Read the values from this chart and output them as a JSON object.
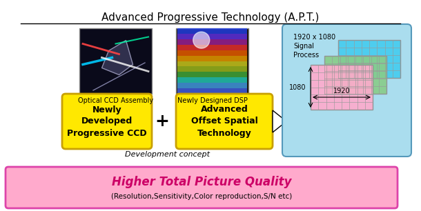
{
  "title": "Advanced Progressive Technology (A.P.T.)",
  "bg_color": "#ffffff",
  "title_fontsize": 11,
  "box1_text": "Newly\nDeveloped\nProgressive CCD",
  "box2_text": "Advanced\nOffset Spatial\nTechnology",
  "box_color": "#FFE800",
  "box_edge": "#C8A000",
  "label1": "Optical CCD Assembly",
  "label2": "Newly Designed DSP",
  "dev_label": "Development concept",
  "bottom_text": "Higher Total Picture Quality",
  "bottom_sub": "(Resolution,Sensitivity,Color reproduction,S/N etc)",
  "bottom_bg": "#FFAACC",
  "bottom_edge": "#DD44AA",
  "signal_box_bg": "#AADDEE",
  "signal_box_edge": "#5599BB",
  "signal_title": "1920 x 1080\nSignal\nProcess",
  "grid_color_blue": "#44CCEE",
  "grid_color_green": "#88CC88",
  "grid_color_pink": "#FFAACC",
  "grid_label_1920": "1920",
  "grid_label_1080": "1080"
}
